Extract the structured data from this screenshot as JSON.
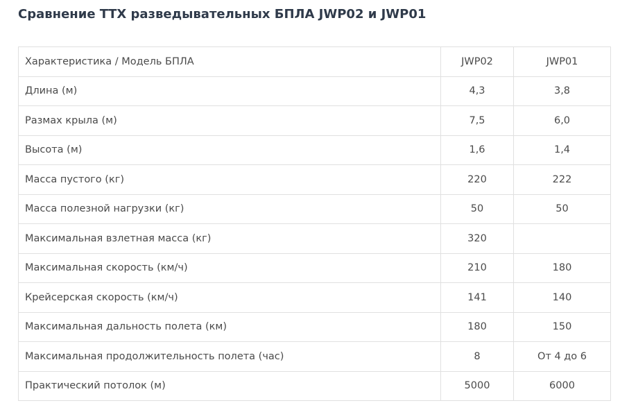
{
  "title": "Сравнение ТТХ разведывательных БПЛА JWP02 и JWP01",
  "table": {
    "header": {
      "label": "Характеристика / Модель БПЛА",
      "col_a": "JWP02",
      "col_b": "JWP01"
    },
    "rows": [
      {
        "label": "Длина (м)",
        "jwp02": "4,3",
        "jwp01": "3,8"
      },
      {
        "label": "Размах крыла (м)",
        "jwp02": "7,5",
        "jwp01": "6,0"
      },
      {
        "label": "Высота (м)",
        "jwp02": "1,6",
        "jwp01": "1,4"
      },
      {
        "label": "Масса пустого (кг)",
        "jwp02": "220",
        "jwp01": "222"
      },
      {
        "label": "Масса полезной нагрузки (кг)",
        "jwp02": "50",
        "jwp01": "50"
      },
      {
        "label": "Максимальная взлетная масса (кг)",
        "jwp02": "320",
        "jwp01": ""
      },
      {
        "label": "Максимальная скорость (км/ч)",
        "jwp02": "210",
        "jwp01": "180"
      },
      {
        "label": "Крейсерская скорость (км/ч)",
        "jwp02": "141",
        "jwp01": "140"
      },
      {
        "label": "Максимальная дальность полета (км)",
        "jwp02": "180",
        "jwp01": "150"
      },
      {
        "label": "Максимальная продолжительность полета (час)",
        "jwp02": "8",
        "jwp01": "От 4 до 6"
      },
      {
        "label": "Практический потолок (м)",
        "jwp02": "5000",
        "jwp01": "6000"
      }
    ]
  }
}
